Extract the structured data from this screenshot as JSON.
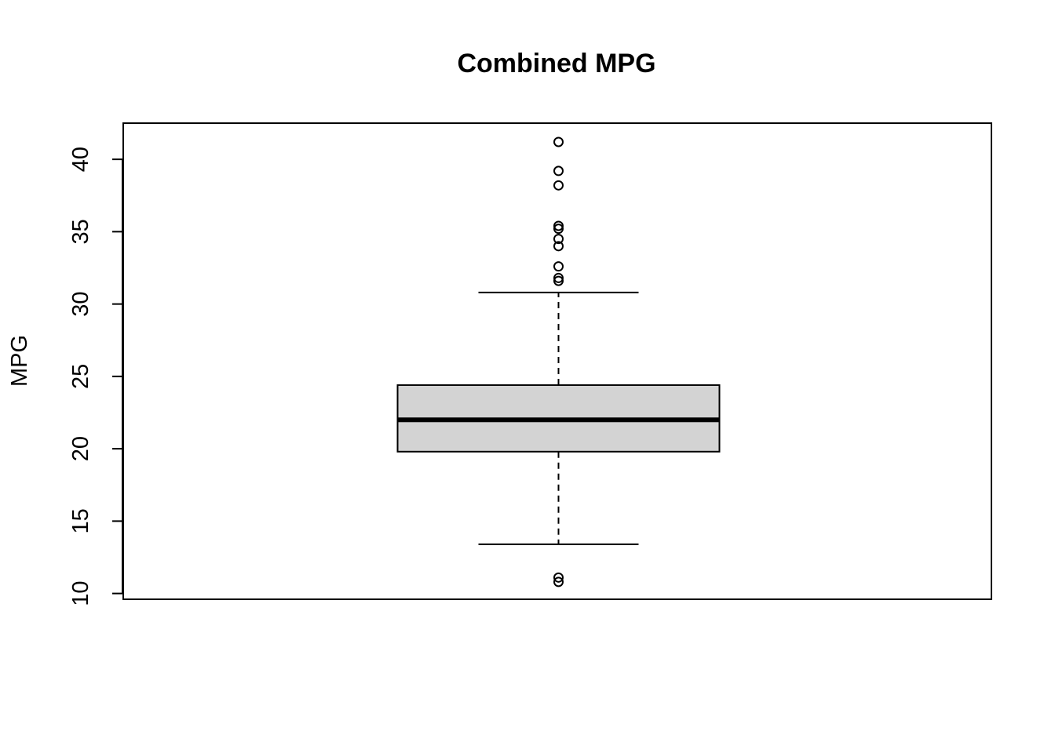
{
  "chart_data": {
    "type": "boxplot",
    "title": "Combined MPG",
    "xlabel": "",
    "ylabel": "MPG",
    "ylim": [
      9.6,
      42.5
    ],
    "yticks": [
      10,
      15,
      20,
      25,
      30,
      35,
      40
    ],
    "grid": false,
    "legend": "none",
    "box": {
      "lower_whisker": 13.4,
      "q1": 19.8,
      "median": 22.0,
      "q3": 24.4,
      "upper_whisker": 30.8,
      "fill_color": "#d3d3d3"
    },
    "outliers": [
      41.2,
      39.2,
      38.2,
      35.4,
      35.2,
      34.5,
      34.0,
      32.6,
      31.8,
      31.6,
      11.1,
      10.8
    ]
  }
}
